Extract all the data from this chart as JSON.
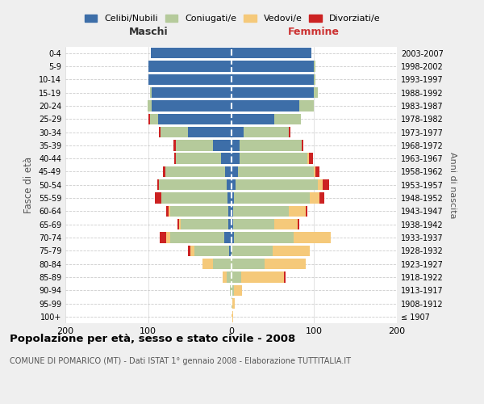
{
  "age_groups": [
    "100+",
    "95-99",
    "90-94",
    "85-89",
    "80-84",
    "75-79",
    "70-74",
    "65-69",
    "60-64",
    "55-59",
    "50-54",
    "45-49",
    "40-44",
    "35-39",
    "30-34",
    "25-29",
    "20-24",
    "15-19",
    "10-14",
    "5-9",
    "0-4"
  ],
  "birth_years": [
    "≤ 1907",
    "1908-1912",
    "1913-1917",
    "1918-1922",
    "1923-1927",
    "1928-1932",
    "1933-1937",
    "1938-1942",
    "1943-1947",
    "1948-1952",
    "1953-1957",
    "1958-1962",
    "1963-1967",
    "1968-1972",
    "1973-1977",
    "1978-1982",
    "1983-1987",
    "1988-1992",
    "1993-1997",
    "1998-2002",
    "2003-2007"
  ],
  "colors": {
    "celibi": "#3d6ea8",
    "coniugati": "#b5ca9b",
    "vedovi": "#f5c97a",
    "divorziati": "#cc2222"
  },
  "maschi": {
    "celibi": [
      0,
      0,
      0,
      0,
      0,
      2,
      8,
      3,
      3,
      4,
      5,
      7,
      12,
      22,
      52,
      88,
      96,
      96,
      100,
      100,
      97
    ],
    "coniugati": [
      0,
      0,
      1,
      5,
      22,
      42,
      65,
      58,
      70,
      80,
      82,
      72,
      55,
      45,
      33,
      10,
      5,
      2,
      0,
      0,
      0
    ],
    "vedovi": [
      0,
      0,
      0,
      5,
      13,
      5,
      5,
      2,
      2,
      0,
      0,
      0,
      0,
      0,
      0,
      0,
      0,
      0,
      0,
      0,
      0
    ],
    "divorziati": [
      0,
      0,
      0,
      0,
      0,
      3,
      8,
      2,
      3,
      8,
      2,
      3,
      2,
      3,
      2,
      2,
      0,
      0,
      0,
      0,
      0
    ]
  },
  "femmine": {
    "celibi": [
      0,
      0,
      0,
      0,
      0,
      0,
      3,
      2,
      2,
      3,
      5,
      8,
      10,
      10,
      15,
      52,
      82,
      100,
      100,
      100,
      97
    ],
    "coniugati": [
      0,
      1,
      3,
      12,
      40,
      50,
      72,
      50,
      68,
      92,
      100,
      92,
      82,
      75,
      55,
      32,
      18,
      5,
      2,
      2,
      0
    ],
    "vedovi": [
      2,
      3,
      10,
      52,
      50,
      45,
      45,
      28,
      20,
      12,
      5,
      2,
      2,
      0,
      0,
      0,
      0,
      0,
      0,
      0,
      0
    ],
    "divorziati": [
      0,
      0,
      0,
      2,
      0,
      0,
      0,
      2,
      2,
      5,
      8,
      5,
      5,
      2,
      2,
      0,
      0,
      0,
      0,
      0,
      0
    ]
  },
  "title": "Popolazione per età, sesso e stato civile - 2008",
  "subtitle": "COMUNE DI POMARICO (MT) - Dati ISTAT 1° gennaio 2008 - Elaborazione TUTTITALIA.IT",
  "xlabel_maschi": "Maschi",
  "xlabel_femmine": "Femmine",
  "ylabel": "Fasce di età",
  "ylabel_right": "Anni di nascita",
  "xlim": 200,
  "legend_labels": [
    "Celibi/Nubili",
    "Coniugati/e",
    "Vedovi/e",
    "Divorziati/e"
  ],
  "background_color": "#efefef",
  "plot_background": "#ffffff"
}
